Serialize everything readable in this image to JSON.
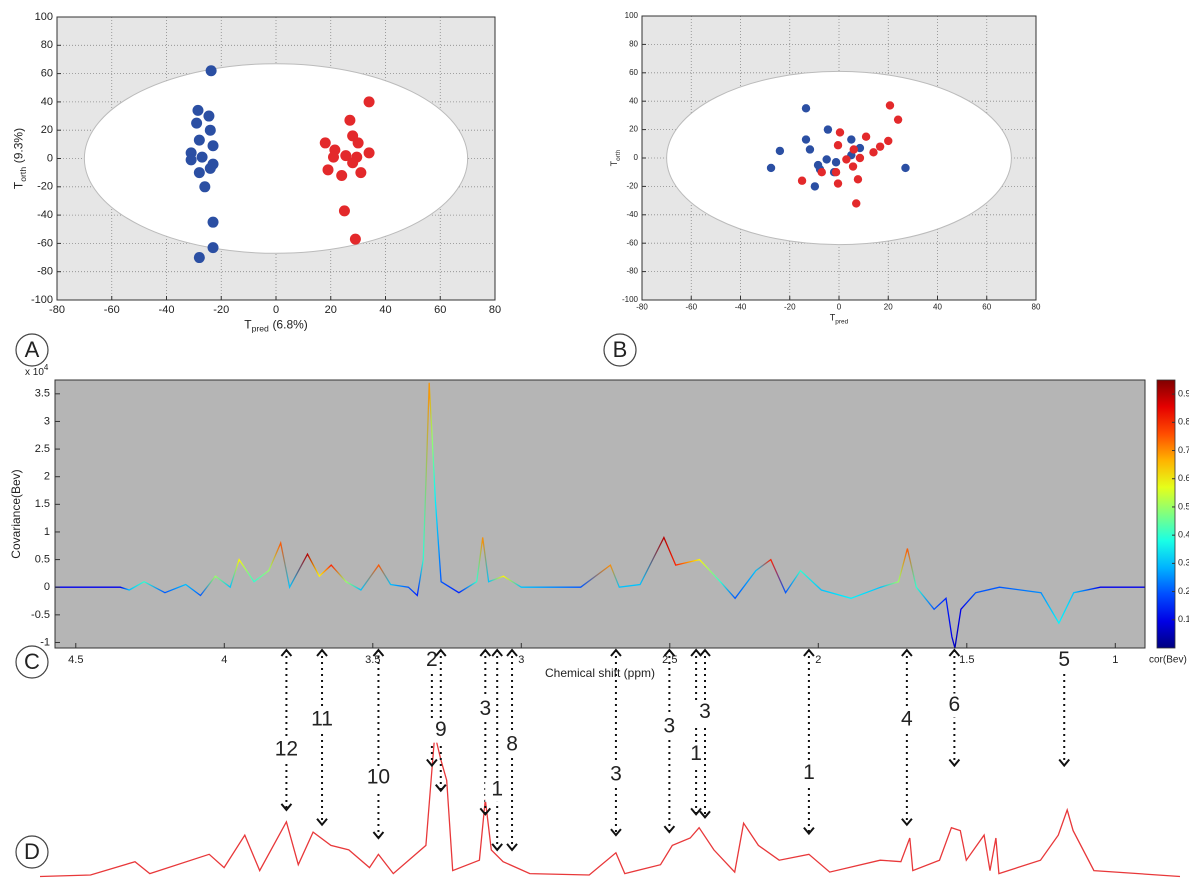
{
  "chart_data": [
    {
      "type": "scatter",
      "panel_label": "A",
      "x_label": {
        "text": "T",
        "sub": "pred",
        "suffix": "(6.8%)"
      },
      "y_label": {
        "text": "T",
        "sub": "orth",
        "suffix": "(9.3%)"
      },
      "xlim": [
        -80,
        80
      ],
      "ylim": [
        -100,
        100
      ],
      "xticks": [
        -80,
        -60,
        -40,
        -20,
        0,
        20,
        40,
        60,
        80
      ],
      "yticks": [
        -100,
        -80,
        -60,
        -40,
        -20,
        0,
        20,
        40,
        60,
        80,
        100
      ],
      "grid": true,
      "ellipse": {
        "cx": 0,
        "cy": 0,
        "rx": 70,
        "ry": 67
      },
      "series": [
        {
          "color": "#2b4fa3",
          "x": [
            -23.7,
            -28.5,
            -24.5,
            -29,
            -24,
            -28,
            -23,
            -31,
            -27,
            -31,
            -23,
            -28,
            -24,
            -26,
            -23,
            -23,
            -28
          ],
          "values": [
            62,
            34,
            30,
            25,
            20,
            13,
            9,
            4,
            1,
            -1,
            -4,
            -10,
            -7,
            -20,
            -45,
            -63,
            -70
          ]
        },
        {
          "color": "#e3292b",
          "x": [
            34,
            27,
            18,
            28,
            30,
            21.5,
            34,
            25.5,
            21,
            29.5,
            19,
            24,
            31,
            25,
            29,
            28
          ],
          "values": [
            40,
            27,
            11,
            16,
            11,
            6,
            4,
            2,
            1,
            1,
            -8,
            -12,
            -10,
            -37,
            -57,
            -3
          ]
        }
      ]
    },
    {
      "type": "scatter",
      "panel_label": "B",
      "x_label": {
        "text": "T",
        "sub": "pred"
      },
      "y_label": {
        "text": "T",
        "sub": "orth"
      },
      "xlim": [
        -80,
        80
      ],
      "ylim": [
        -100,
        100
      ],
      "xticks": [
        -80,
        -60,
        -40,
        -20,
        0,
        20,
        40,
        60,
        80
      ],
      "yticks": [
        -100,
        -80,
        -60,
        -40,
        -20,
        0,
        20,
        40,
        60,
        80,
        100
      ],
      "grid": true,
      "ellipse": {
        "cx": 0,
        "cy": 0,
        "rx": 70,
        "ry": 61
      },
      "series": [
        {
          "color": "#2b4fa3",
          "x": [
            -13.4,
            -24,
            -27.6,
            -13.4,
            -11.8,
            -4.5,
            -8.5,
            -5,
            -9.8,
            -1.2,
            5,
            5,
            8.5,
            27,
            -7.7,
            -2
          ],
          "values": [
            35,
            5,
            -7,
            13,
            6,
            20,
            -5,
            -1,
            -20,
            -3,
            13,
            2,
            7,
            -7,
            -8,
            -10
          ]
        },
        {
          "color": "#e3292b",
          "x": [
            20.7,
            24,
            0.4,
            -0.4,
            11,
            6,
            14,
            16.7,
            20,
            -15,
            -7,
            -1.2,
            -0.4,
            5.7,
            7.7,
            7,
            8.5,
            3
          ],
          "values": [
            37,
            27,
            18,
            9,
            15,
            6,
            4,
            8,
            12,
            -16,
            -10,
            -10,
            -18,
            -6,
            -15,
            -32,
            0,
            -1
          ]
        }
      ]
    },
    {
      "type": "line",
      "panel_label": "C",
      "x_label": "Chemical shift (ppm)",
      "y_label": "Covariance(Bev)",
      "y_multiplier": {
        "text": "x 10",
        "sup": "4"
      },
      "xlim": [
        4.57,
        0.9
      ],
      "ylim": [
        -1.1,
        3.75
      ],
      "xticks": [
        4.5,
        4,
        3.5,
        3,
        2.5,
        2,
        1.5,
        1
      ],
      "yticks": [
        -1,
        -0.5,
        0,
        0.5,
        1,
        1.5,
        2,
        2.5,
        3,
        3.5
      ],
      "x": [
        4.57,
        4.35,
        4.32,
        4.27,
        4.2,
        4.13,
        4.08,
        4.03,
        3.98,
        3.95,
        3.9,
        3.85,
        3.81,
        3.78,
        3.72,
        3.68,
        3.64,
        3.59,
        3.54,
        3.48,
        3.44,
        3.38,
        3.35,
        3.33,
        3.31,
        3.3,
        3.29,
        3.27,
        3.21,
        3.15,
        3.13,
        3.11,
        3.06,
        3.0,
        2.8,
        2.7,
        2.67,
        2.6,
        2.52,
        2.48,
        2.4,
        2.33,
        2.28,
        2.21,
        2.16,
        2.11,
        2.06,
        1.99,
        1.89,
        1.79,
        1.73,
        1.7,
        1.67,
        1.61,
        1.57,
        1.55,
        1.54,
        1.52,
        1.47,
        1.39,
        1.25,
        1.19,
        1.14,
        1.05,
        0.9
      ],
      "values": [
        0,
        0,
        -0.05,
        0.1,
        -0.1,
        0.05,
        -0.15,
        0.2,
        0,
        0.5,
        0.1,
        0.3,
        0.8,
        0,
        0.6,
        0.2,
        0.4,
        0.1,
        -0.05,
        0.4,
        0.05,
        0,
        -0.15,
        0.5,
        3.7,
        2.7,
        1.6,
        0.1,
        -0.1,
        0.1,
        0.9,
        0.1,
        0.2,
        0,
        0,
        0.4,
        0,
        0.05,
        0.9,
        0.4,
        0.5,
        0.1,
        -0.2,
        0.3,
        0.5,
        -0.1,
        0.3,
        -0.05,
        -0.2,
        0,
        0.1,
        0.7,
        0,
        -0.4,
        -0.2,
        -0.9,
        -1.1,
        -0.4,
        -0.1,
        0,
        -0.1,
        -0.65,
        -0.1,
        0,
        0
      ],
      "cor": [
        0.1,
        0.1,
        0.3,
        0.4,
        0.2,
        0.3,
        0.2,
        0.5,
        0.3,
        0.6,
        0.4,
        0.5,
        0.75,
        0.3,
        0.9,
        0.6,
        0.8,
        0.5,
        0.3,
        0.75,
        0.3,
        0.2,
        0.15,
        0.4,
        0.7,
        0.5,
        0.35,
        0.2,
        0.15,
        0.4,
        0.7,
        0.3,
        0.6,
        0.3,
        0.2,
        0.7,
        0.3,
        0.3,
        0.9,
        0.8,
        0.6,
        0.4,
        0.2,
        0.3,
        0.8,
        0.2,
        0.4,
        0.3,
        0.35,
        0.3,
        0.5,
        0.75,
        0.4,
        0.2,
        0.15,
        0.1,
        0.05,
        0.1,
        0.2,
        0.2,
        0.25,
        0.35,
        0.3,
        0.1,
        0.1
      ],
      "colorbar": {
        "lim": [
          0,
          0.95
        ],
        "ticks": [
          0.1,
          0.2,
          0.3,
          0.4,
          0.5,
          0.6,
          0.7,
          0.8,
          0.9
        ],
        "label": "cor(Bev)"
      }
    },
    {
      "type": "line",
      "panel_label": "D",
      "color": "#e8383a",
      "xlim": [
        4.62,
        0.78
      ],
      "ylim": [
        0,
        100
      ],
      "x": [
        4.62,
        4.45,
        4.3,
        4.25,
        4.05,
        4.0,
        3.93,
        3.88,
        3.79,
        3.75,
        3.7,
        3.64,
        3.58,
        3.51,
        3.48,
        3.43,
        3.32,
        3.3,
        3.29,
        3.27,
        3.25,
        3.23,
        3.14,
        3.12,
        3.1,
        3.06,
        2.97,
        2.77,
        2.68,
        2.65,
        2.53,
        2.49,
        2.43,
        2.4,
        2.35,
        2.28,
        2.25,
        2.2,
        2.13,
        2.03,
        1.96,
        1.79,
        1.72,
        1.69,
        1.68,
        1.59,
        1.55,
        1.52,
        1.5,
        1.44,
        1.42,
        1.4,
        1.39,
        1.25,
        1.19,
        1.16,
        1.14,
        1.07,
        0.78
      ],
      "values": [
        1,
        2,
        11,
        3,
        16,
        7,
        29,
        5,
        38,
        9,
        31,
        22,
        19,
        7,
        16,
        3,
        22,
        73,
        97,
        80,
        66,
        5,
        12,
        53,
        19,
        11,
        3,
        2,
        17,
        3,
        9,
        22,
        27,
        34,
        19,
        4,
        37,
        22,
        12,
        16,
        4,
        12,
        11,
        27,
        5,
        12,
        34,
        32,
        12,
        29,
        5,
        27,
        3,
        12,
        29,
        46,
        32,
        5,
        1
      ],
      "annotations": [
        {
          "text": "12",
          "x": 3.79,
          "y": 46
        },
        {
          "text": "11",
          "x": 3.67,
          "y": 36
        },
        {
          "text": "10",
          "x": 3.48,
          "y": 27
        },
        {
          "text": "2",
          "x": 3.3,
          "y": 76
        },
        {
          "text": "9",
          "x": 3.27,
          "y": 59
        },
        {
          "text": "3",
          "x": 3.12,
          "y": 43
        },
        {
          "text": "1",
          "x": 3.08,
          "y": 19
        },
        {
          "text": "8",
          "x": 3.03,
          "y": 19
        },
        {
          "text": "3",
          "x": 2.68,
          "y": 29
        },
        {
          "text": "3",
          "x": 2.5,
          "y": 31
        },
        {
          "text": "1",
          "x": 2.41,
          "y": 43
        },
        {
          "text": "3",
          "x": 2.38,
          "y": 41
        },
        {
          "text": "1",
          "x": 2.03,
          "y": 30
        },
        {
          "text": "4",
          "x": 1.7,
          "y": 36
        },
        {
          "text": "6",
          "x": 1.54,
          "y": 76
        },
        {
          "text": "5",
          "x": 1.17,
          "y": 76
        }
      ]
    }
  ]
}
